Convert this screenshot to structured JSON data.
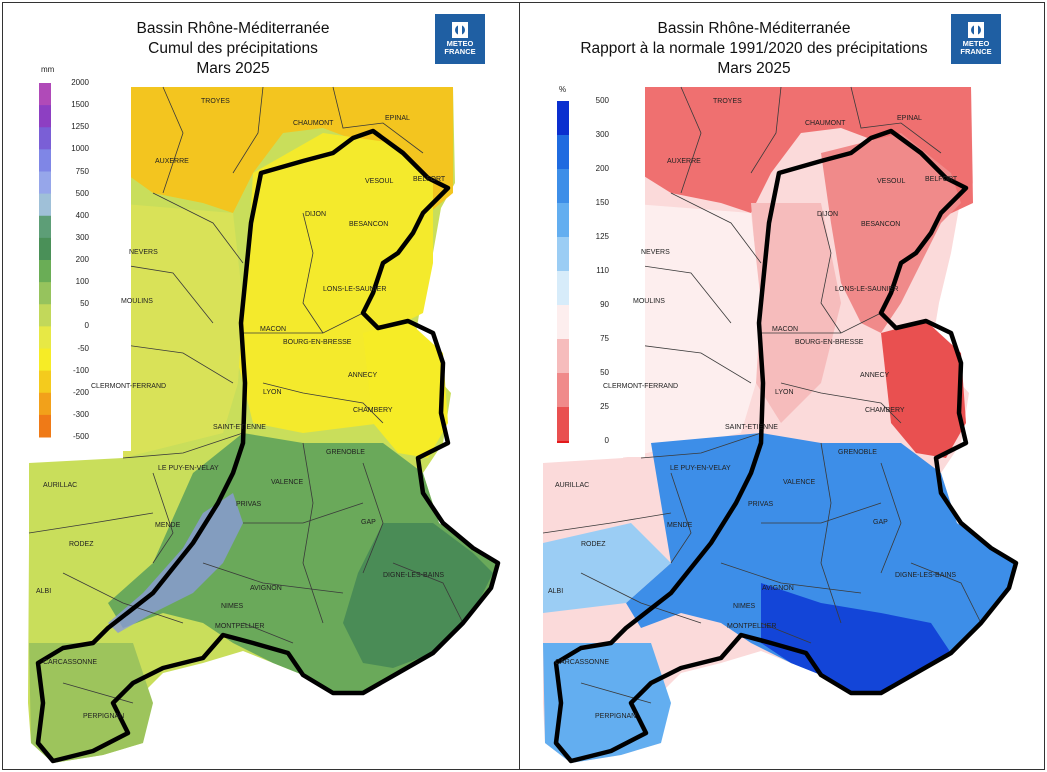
{
  "left_panel": {
    "title_line1": "Bassin Rhône-Méditerranée",
    "title_line2": "Cumul des précipitations",
    "title_line3": "Mars 2025",
    "legend_unit": "mm",
    "legend_ticks": [
      "2000",
      "1500",
      "1250",
      "1000",
      "750",
      "500",
      "400",
      "300",
      "200",
      "100",
      "50",
      "0",
      "-50",
      "-100",
      "-200",
      "-300",
      "-500"
    ],
    "legend_colors": [
      "#b04ab8",
      "#8d3fc2",
      "#7a5fd6",
      "#7f86e6",
      "#96a6ea",
      "#9fc0d8",
      "#5d9e77",
      "#4a9058",
      "#6aad56",
      "#96c35d",
      "#c2d85a",
      "#e7e845",
      "#f6ec26",
      "#f4cb1d",
      "#f2a11a",
      "#ef7a17"
    ]
  },
  "right_panel": {
    "title_line1": "Bassin Rhône-Méditerranée",
    "title_line2": "Rapport à la normale 1991/2020 des précipitations",
    "title_line3": "Mars 2025",
    "legend_unit": "%",
    "legend_ticks": [
      "500",
      "300",
      "200",
      "150",
      "125",
      "110",
      "90",
      "75",
      "50",
      "25",
      "0"
    ],
    "legend_colors": [
      "#0a2fcf",
      "#1f6be0",
      "#3d8ee8",
      "#63aef0",
      "#9bcdf4",
      "#d7ecfa",
      "#fdeeee",
      "#f6bcbc",
      "#f08a8a",
      "#e95050",
      "#e31a1c"
    ]
  },
  "logo": {
    "line1": "METEO",
    "line2": "FRANCE"
  },
  "cities": [
    "TROYES",
    "CHAUMONT",
    "EPINAL",
    "AUXERRE",
    "VESOUL",
    "BELFORT",
    "DIJON",
    "BESANCON",
    "NEVERS",
    "LONS-LE-SAUNIER",
    "MOULINS",
    "MACON",
    "BOURG-EN-BRESSE",
    "ANNECY",
    "CLERMONT-FERRAND",
    "LYON",
    "CHAMBERY",
    "SAINT-ETIENNE",
    "GRENOBLE",
    "LE PUY-EN-VELAY",
    "VALENCE",
    "AURILLAC",
    "PRIVAS",
    "GAP",
    "MENDE",
    "RODEZ",
    "DIGNE-LES-BAINS",
    "AVIGNON",
    "ALBI",
    "NIMES",
    "MONTPELLIER",
    "CARCASSONNE",
    "PERPIGNAN"
  ],
  "colors": {
    "basin_outline": "#000000",
    "logo_bg": "#1f5fa3"
  }
}
